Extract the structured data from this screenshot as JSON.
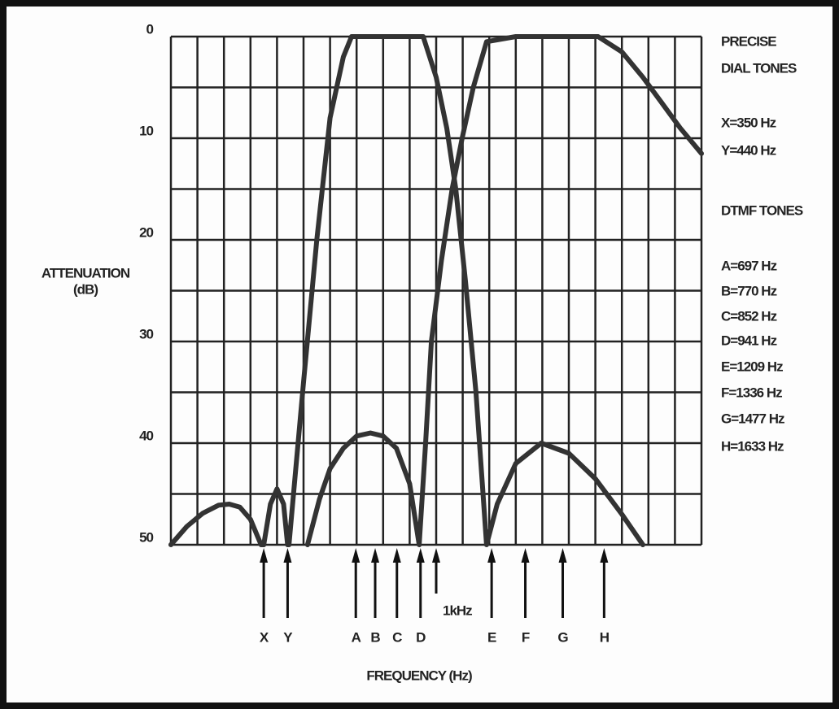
{
  "chart_data": {
    "type": "line",
    "ylabel": [
      "ATTENUATION",
      "(dB)"
    ],
    "xlabel": "FREQUENCY (Hz)",
    "xlim": [
      0,
      2000
    ],
    "xgrid": [
      0,
      100,
      200,
      300,
      400,
      500,
      600,
      700,
      800,
      900,
      1000,
      1100,
      1200,
      1300,
      1400,
      1500,
      1600,
      1700,
      1800,
      1900,
      2000
    ],
    "ylim": [
      50,
      0
    ],
    "yticks": [
      0,
      10,
      20,
      30,
      40,
      50
    ],
    "yminor": [
      5,
      15,
      25,
      35,
      45
    ],
    "grid": true,
    "series": [
      {
        "x": [
          0,
          60,
          120,
          180,
          220,
          260,
          300,
          340,
          350,
          375,
          400,
          425,
          440,
          445,
          500,
          550,
          600,
          650,
          681,
          750,
          850,
          951,
          1000,
          1040,
          1074,
          1110,
          1150,
          1190,
          1230,
          1300,
          1396,
          1500,
          1600,
          1700,
          1779
        ],
        "values": [
          50,
          48.2,
          46.9,
          46.1,
          46,
          46.3,
          47.5,
          50,
          50,
          46,
          44.5,
          46,
          50,
          50,
          34,
          20,
          8,
          2,
          0,
          0,
          0,
          0,
          4,
          9,
          15,
          24,
          35,
          50,
          46,
          42,
          40,
          41,
          43.5,
          47,
          50
        ],
        "color": "#333333"
      },
      {
        "x": [
          515,
          560,
          600,
          650,
          700,
          752,
          800,
          850,
          900,
          936,
          960,
          982,
          1020,
          1060,
          1098,
          1140,
          1190,
          1300,
          1400,
          1500,
          1610,
          1700,
          1779,
          1850,
          1920,
          2000
        ],
        "values": [
          50,
          45.5,
          42.5,
          40.5,
          39.3,
          39,
          39.3,
          40.5,
          44,
          50,
          40,
          30,
          22,
          15,
          10,
          5,
          0.5,
          0,
          0,
          0,
          0,
          1.5,
          4,
          6.5,
          9,
          11.5
        ],
        "color": "#333333"
      }
    ],
    "markers": [
      {
        "label": "X",
        "x": 350
      },
      {
        "label": "Y",
        "x": 440
      },
      {
        "label": "A",
        "x": 697
      },
      {
        "label": "B",
        "x": 770
      },
      {
        "label": "C",
        "x": 852
      },
      {
        "label": "D",
        "x": 941
      },
      {
        "label": "1kHz",
        "x": 1000
      },
      {
        "label": "E",
        "x": 1209
      },
      {
        "label": "F",
        "x": 1336
      },
      {
        "label": "G",
        "x": 1477
      },
      {
        "label": "H",
        "x": 1633
      }
    ],
    "annotations": [
      "PRECISE",
      "DIAL TONES",
      "X=350 Hz",
      "Y=440 Hz",
      "DTMF TONES",
      "A=697 Hz",
      "B=770 Hz",
      "C=852 Hz",
      "D=941 Hz",
      "E=1209 Hz",
      "F=1336 Hz",
      "G=1477 Hz",
      "H=1633 Hz"
    ]
  }
}
